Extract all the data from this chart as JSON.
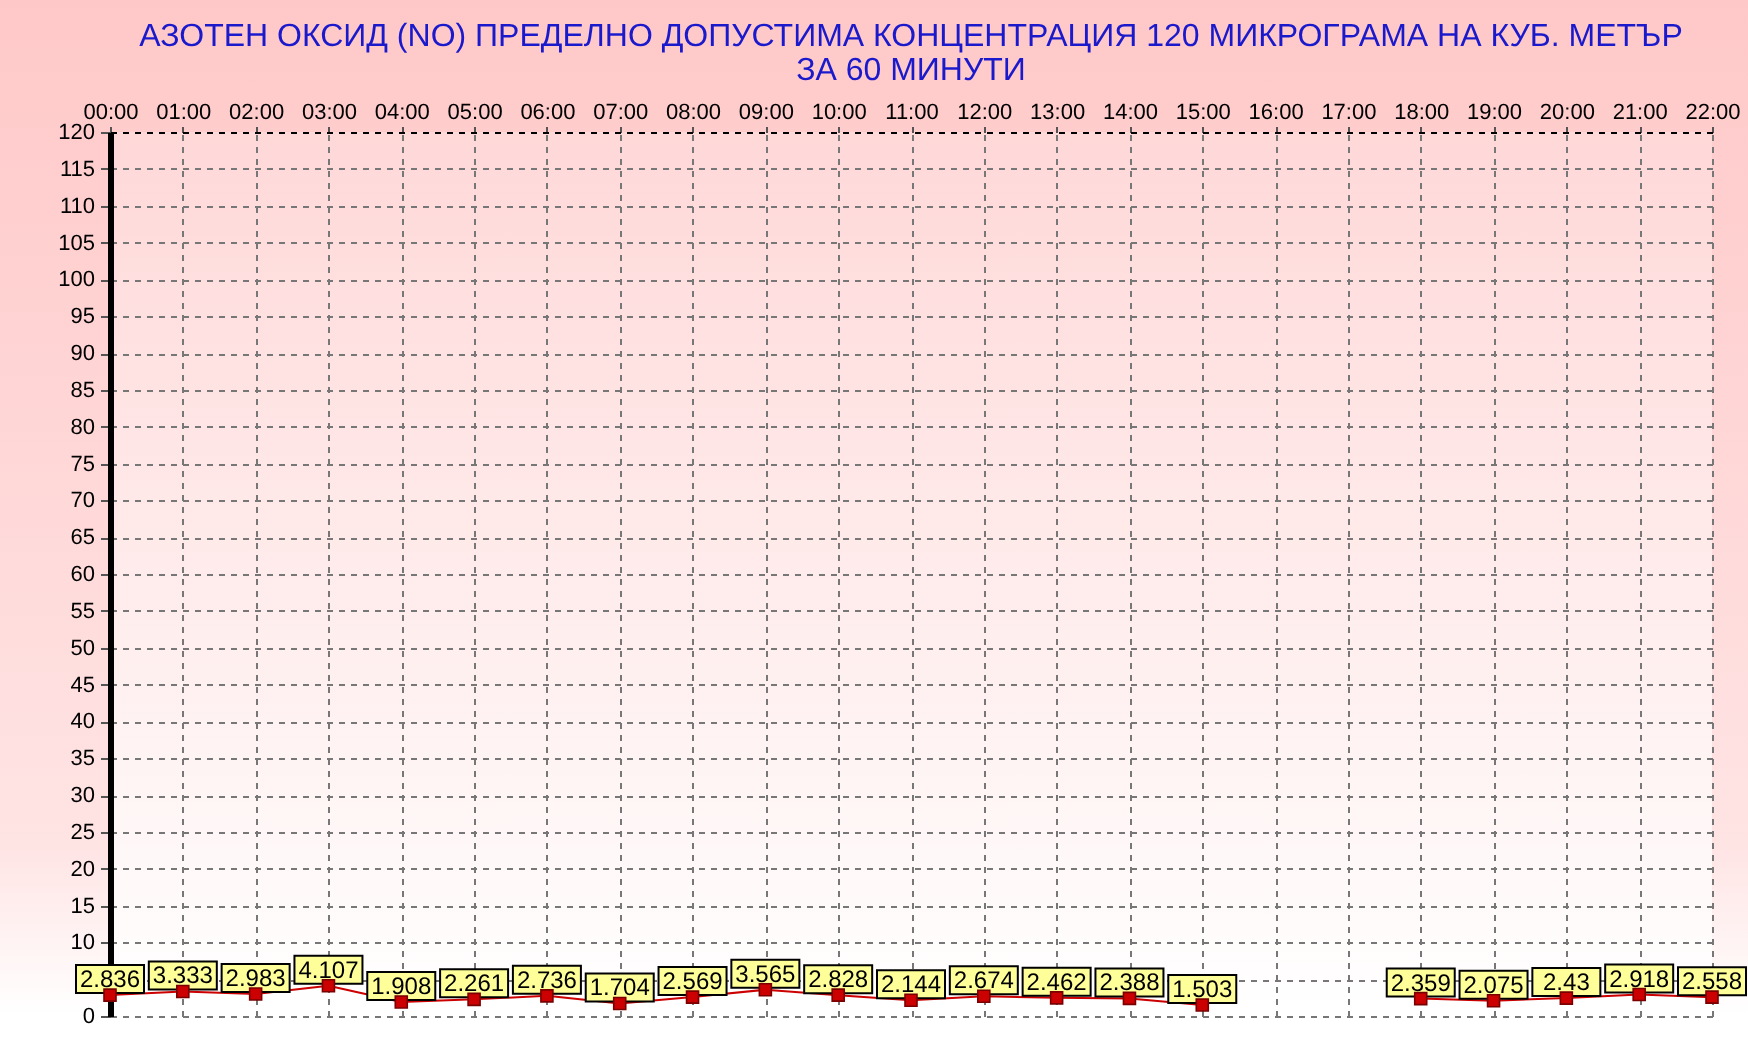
{
  "chart_data": {
    "type": "line",
    "title": "АЗОТЕН ОКСИД   (NO)     ПРЕДЕЛНО ДОПУСТИМА КОНЦЕНТРАЦИЯ 120 МИКРОГРАМА  НА КУБ. МЕТЪР\nЗА 60 МИНУТИ",
    "categories": [
      "00:00",
      "01:00",
      "02:00",
      "03:00",
      "04:00",
      "05:00",
      "06:00",
      "07:00",
      "08:00",
      "09:00",
      "10:00",
      "11:00",
      "12:00",
      "13:00",
      "14:00",
      "15:00",
      "16:00",
      "17:00",
      "18:00",
      "19:00",
      "20:00",
      "21:00",
      "22:00"
    ],
    "series": [
      {
        "color": "#cc0000",
        "values": [
          2.836,
          3.333,
          2.983,
          4.107,
          1.908,
          2.261,
          2.736,
          1.704,
          2.569,
          3.565,
          2.828,
          2.144,
          2.674,
          2.462,
          2.388,
          1.503,
          null,
          null,
          2.359,
          2.075,
          2.43,
          2.918,
          2.558
        ]
      }
    ],
    "ylim": [
      0,
      120
    ],
    "yticks": [
      0,
      {
        "value": 5,
        "label": null
      },
      10,
      15,
      20,
      25,
      30,
      35,
      40,
      45,
      50,
      55,
      60,
      65,
      70,
      75,
      80,
      85,
      90,
      95,
      100,
      105,
      110,
      115,
      120
    ],
    "grid": true,
    "marker": "square",
    "data_labels": true
  }
}
